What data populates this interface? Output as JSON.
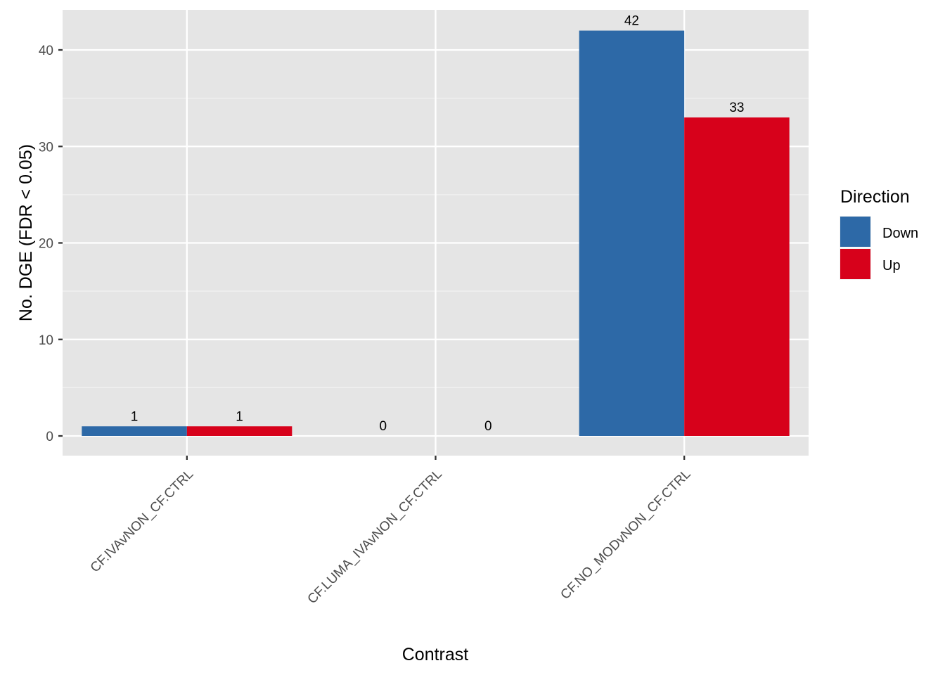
{
  "chart_data": {
    "type": "bar",
    "categories": [
      "CF.IVAvNON_CF.CTRL",
      "CF.LUMA_IVAvNON_CF.CTRL",
      "CF.NO_MODvNON_CF.CTRL"
    ],
    "series": [
      {
        "name": "Down",
        "values": [
          1,
          0,
          42
        ],
        "color": "#2D69A7"
      },
      {
        "name": "Up",
        "values": [
          1,
          0,
          33
        ],
        "color": "#D7011B"
      }
    ],
    "xlabel": "Contrast",
    "ylabel": "No. DGE (FDR < 0.05)",
    "ylim": [
      -2,
      44
    ],
    "yticks": [
      0,
      10,
      20,
      30,
      40
    ],
    "legend": {
      "title": "Direction",
      "position": "right"
    },
    "grid": true,
    "panel_background": "#E5E5E5"
  }
}
